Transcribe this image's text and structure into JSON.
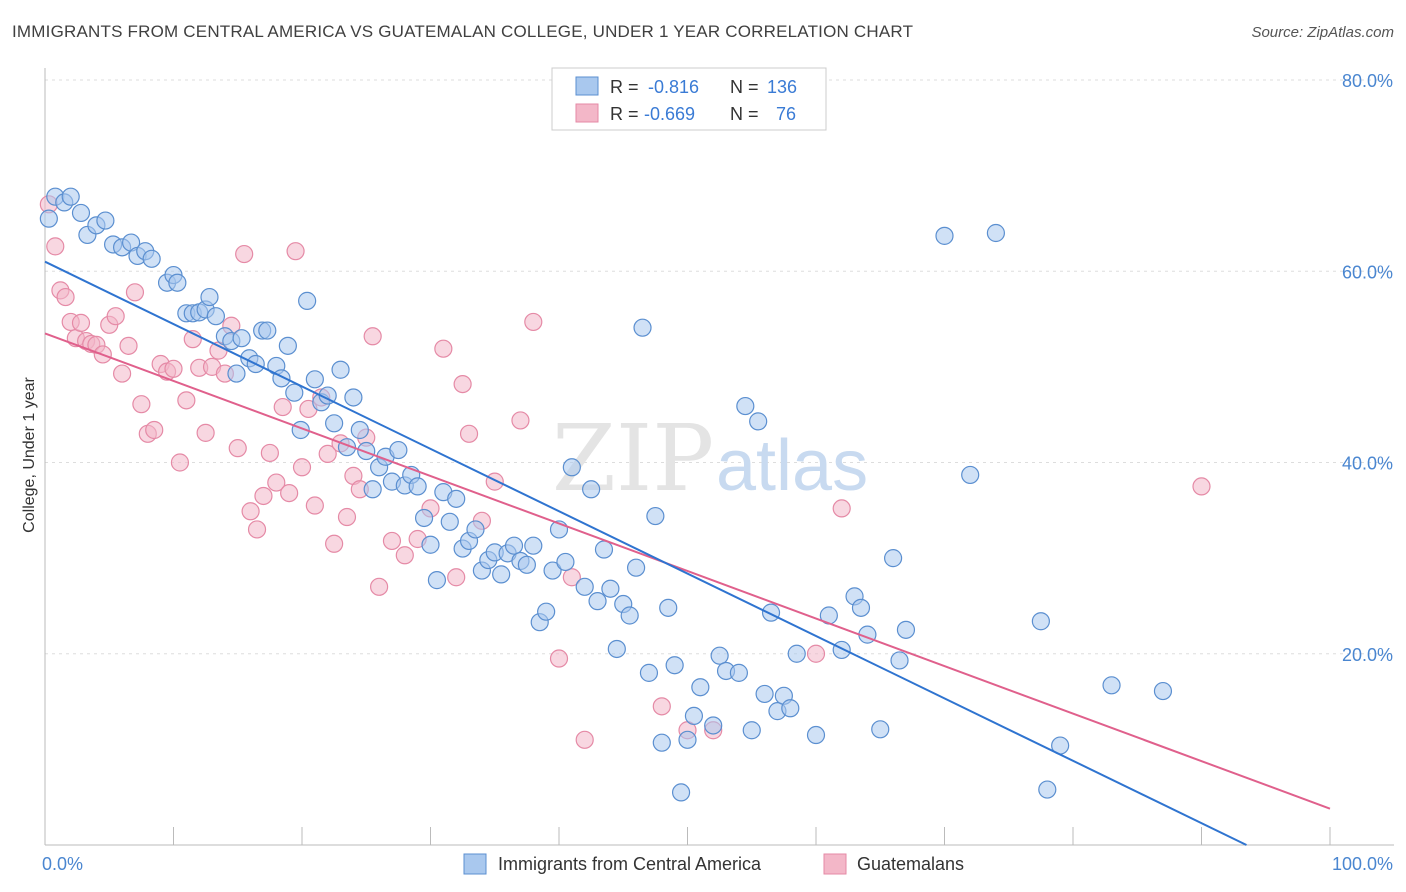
{
  "title": "IMMIGRANTS FROM CENTRAL AMERICA VS GUATEMALAN COLLEGE, UNDER 1 YEAR CORRELATION CHART",
  "source": "Source: ZipAtlas.com",
  "watermark": {
    "zip": "ZIP",
    "atlas": "atlas"
  },
  "colors": {
    "blue_fill": "#a9c8ee",
    "blue_stroke": "#5b8fd0",
    "blue_line": "#2f74d0",
    "pink_fill": "#f3b7c8",
    "pink_stroke": "#e58aa6",
    "pink_line": "#e0608c",
    "axis_text": "#4a86d0",
    "grid": "#dddddd"
  },
  "legend": {
    "rows": [
      {
        "r_label": "R =",
        "r_value": "-0.816",
        "n_label": "N =",
        "n_value": "136"
      },
      {
        "r_label": "R =",
        "r_value": "-0.669",
        "n_label": "N =",
        "n_value": "76"
      }
    ]
  },
  "chart_data": {
    "type": "scatter",
    "title": "IMMIGRANTS FROM CENTRAL AMERICA VS GUATEMALAN COLLEGE, UNDER 1 YEAR CORRELATION CHART",
    "xlabel": "",
    "ylabel": "College, Under 1 year",
    "xlim": [
      0,
      100
    ],
    "ylim": [
      0,
      80
    ],
    "x_tick_labels": [
      "0.0%",
      "100.0%"
    ],
    "y_tick_labels": [
      "20.0%",
      "40.0%",
      "60.0%",
      "80.0%"
    ],
    "y_ticks": [
      20,
      40,
      60,
      80
    ],
    "grid": true,
    "legend_position": "bottom",
    "series": [
      {
        "name": "Immigrants from Central America",
        "r": -0.816,
        "n": 136,
        "trend": [
          [
            0,
            61.0
          ],
          [
            93.5,
            0.0
          ]
        ],
        "points": [
          [
            0.3,
            65.5
          ],
          [
            0.8,
            67.8
          ],
          [
            1.5,
            67.2
          ],
          [
            2,
            67.8
          ],
          [
            2.8,
            66.1
          ],
          [
            3.3,
            63.8
          ],
          [
            4,
            64.8
          ],
          [
            4.7,
            65.3
          ],
          [
            5.3,
            62.8
          ],
          [
            6,
            62.5
          ],
          [
            6.7,
            63.0
          ],
          [
            7.2,
            61.6
          ],
          [
            7.8,
            62.1
          ],
          [
            8.3,
            61.3
          ],
          [
            9.5,
            58.8
          ],
          [
            10,
            59.6
          ],
          [
            10.3,
            58.8
          ],
          [
            11,
            55.6
          ],
          [
            11.5,
            55.6
          ],
          [
            12,
            55.7
          ],
          [
            12.5,
            56.0
          ],
          [
            12.8,
            57.3
          ],
          [
            13.3,
            55.3
          ],
          [
            14,
            53.2
          ],
          [
            14.5,
            52.7
          ],
          [
            14.9,
            49.3
          ],
          [
            15.3,
            53.0
          ],
          [
            15.9,
            50.9
          ],
          [
            16.4,
            50.3
          ],
          [
            16.9,
            53.8
          ],
          [
            17.3,
            53.8
          ],
          [
            18,
            50.1
          ],
          [
            18.4,
            48.8
          ],
          [
            18.9,
            52.2
          ],
          [
            19.4,
            47.3
          ],
          [
            19.9,
            43.4
          ],
          [
            20.4,
            56.9
          ],
          [
            21,
            48.7
          ],
          [
            21.5,
            46.3
          ],
          [
            22,
            47.0
          ],
          [
            22.5,
            44.1
          ],
          [
            23,
            49.7
          ],
          [
            23.5,
            41.6
          ],
          [
            24,
            46.8
          ],
          [
            24.5,
            43.4
          ],
          [
            25,
            41.2
          ],
          [
            25.5,
            37.2
          ],
          [
            26,
            39.5
          ],
          [
            26.5,
            40.6
          ],
          [
            27,
            38.0
          ],
          [
            27.5,
            41.3
          ],
          [
            28,
            37.6
          ],
          [
            28.5,
            38.7
          ],
          [
            29,
            37.5
          ],
          [
            29.5,
            34.2
          ],
          [
            30,
            31.4
          ],
          [
            30.5,
            27.7
          ],
          [
            31,
            36.9
          ],
          [
            31.5,
            33.8
          ],
          [
            32,
            36.2
          ],
          [
            32.5,
            31.0
          ],
          [
            33,
            31.8
          ],
          [
            33.5,
            33.0
          ],
          [
            34,
            28.7
          ],
          [
            34.5,
            29.8
          ],
          [
            35,
            30.6
          ],
          [
            35.5,
            28.3
          ],
          [
            36,
            30.5
          ],
          [
            36.5,
            31.3
          ],
          [
            37,
            29.7
          ],
          [
            37.5,
            29.3
          ],
          [
            38,
            31.3
          ],
          [
            38.5,
            23.3
          ],
          [
            39,
            24.4
          ],
          [
            39.5,
            28.7
          ],
          [
            40,
            33.0
          ],
          [
            40.5,
            29.6
          ],
          [
            41,
            39.5
          ],
          [
            42,
            27.0
          ],
          [
            42.5,
            37.2
          ],
          [
            43,
            25.5
          ],
          [
            43.5,
            30.9
          ],
          [
            44,
            26.8
          ],
          [
            44.5,
            20.5
          ],
          [
            45,
            25.2
          ],
          [
            45.5,
            24.0
          ],
          [
            46,
            29.0
          ],
          [
            46.5,
            54.1
          ],
          [
            47,
            18.0
          ],
          [
            47.5,
            34.4
          ],
          [
            48,
            10.7
          ],
          [
            48.5,
            24.8
          ],
          [
            49,
            18.8
          ],
          [
            49.5,
            5.5
          ],
          [
            50,
            11.0
          ],
          [
            50.5,
            13.5
          ],
          [
            51,
            16.5
          ],
          [
            52,
            12.5
          ],
          [
            52.5,
            19.8
          ],
          [
            53,
            18.2
          ],
          [
            54,
            18.0
          ],
          [
            54.5,
            45.9
          ],
          [
            55,
            12.0
          ],
          [
            55.5,
            44.3
          ],
          [
            56,
            15.8
          ],
          [
            56.5,
            24.3
          ],
          [
            57,
            14.0
          ],
          [
            57.5,
            15.6
          ],
          [
            58,
            14.3
          ],
          [
            58.5,
            20.0
          ],
          [
            60,
            11.5
          ],
          [
            61,
            24.0
          ],
          [
            62,
            20.4
          ],
          [
            63,
            26.0
          ],
          [
            63.5,
            24.8
          ],
          [
            64,
            22.0
          ],
          [
            65,
            12.1
          ],
          [
            66,
            30.0
          ],
          [
            66.5,
            19.3
          ],
          [
            67,
            22.5
          ],
          [
            70,
            63.7
          ],
          [
            72,
            38.7
          ],
          [
            74,
            64.0
          ],
          [
            77.5,
            23.4
          ],
          [
            78,
            5.8
          ],
          [
            79,
            10.4
          ],
          [
            83,
            16.7
          ],
          [
            87,
            16.1
          ]
        ]
      },
      {
        "name": "Guatemalans",
        "r": -0.669,
        "n": 76,
        "trend": [
          [
            0,
            53.5
          ],
          [
            100,
            3.8
          ]
        ],
        "points": [
          [
            0.3,
            67.0
          ],
          [
            0.8,
            62.6
          ],
          [
            1.2,
            58.0
          ],
          [
            1.6,
            57.3
          ],
          [
            2,
            54.7
          ],
          [
            2.4,
            53.0
          ],
          [
            2.8,
            54.6
          ],
          [
            3.2,
            52.7
          ],
          [
            3.6,
            52.4
          ],
          [
            4,
            52.3
          ],
          [
            4.5,
            51.3
          ],
          [
            5,
            54.4
          ],
          [
            5.5,
            55.3
          ],
          [
            6,
            49.3
          ],
          [
            6.5,
            52.2
          ],
          [
            7,
            57.8
          ],
          [
            7.5,
            46.1
          ],
          [
            8,
            43.0
          ],
          [
            8.5,
            43.4
          ],
          [
            9,
            50.3
          ],
          [
            9.5,
            49.5
          ],
          [
            10,
            49.8
          ],
          [
            10.5,
            40.0
          ],
          [
            11,
            46.5
          ],
          [
            11.5,
            52.9
          ],
          [
            12,
            49.9
          ],
          [
            12.5,
            43.1
          ],
          [
            13,
            50.0
          ],
          [
            13.5,
            51.7
          ],
          [
            14,
            49.3
          ],
          [
            14.5,
            54.3
          ],
          [
            15,
            41.5
          ],
          [
            15.5,
            61.8
          ],
          [
            16,
            34.9
          ],
          [
            16.5,
            33.0
          ],
          [
            17,
            36.5
          ],
          [
            17.5,
            41.0
          ],
          [
            18,
            37.9
          ],
          [
            18.5,
            45.8
          ],
          [
            19,
            36.8
          ],
          [
            19.5,
            62.1
          ],
          [
            20,
            39.5
          ],
          [
            20.5,
            45.6
          ],
          [
            21,
            35.5
          ],
          [
            21.5,
            46.8
          ],
          [
            22,
            40.9
          ],
          [
            22.5,
            31.5
          ],
          [
            23,
            42.0
          ],
          [
            23.5,
            34.3
          ],
          [
            24,
            38.6
          ],
          [
            24.5,
            37.2
          ],
          [
            25,
            42.6
          ],
          [
            25.5,
            53.2
          ],
          [
            26,
            27.0
          ],
          [
            27,
            31.8
          ],
          [
            28,
            30.3
          ],
          [
            29,
            32.0
          ],
          [
            30,
            35.2
          ],
          [
            31,
            51.9
          ],
          [
            32,
            28.0
          ],
          [
            32.5,
            48.2
          ],
          [
            33,
            43.0
          ],
          [
            34,
            33.9
          ],
          [
            35,
            38.0
          ],
          [
            37,
            44.4
          ],
          [
            38,
            54.7
          ],
          [
            40,
            19.5
          ],
          [
            41,
            28.0
          ],
          [
            42,
            11.0
          ],
          [
            48,
            14.5
          ],
          [
            50,
            12.0
          ],
          [
            52,
            12.0
          ],
          [
            60,
            20.0
          ],
          [
            62,
            35.2
          ],
          [
            90,
            37.5
          ]
        ]
      }
    ]
  }
}
